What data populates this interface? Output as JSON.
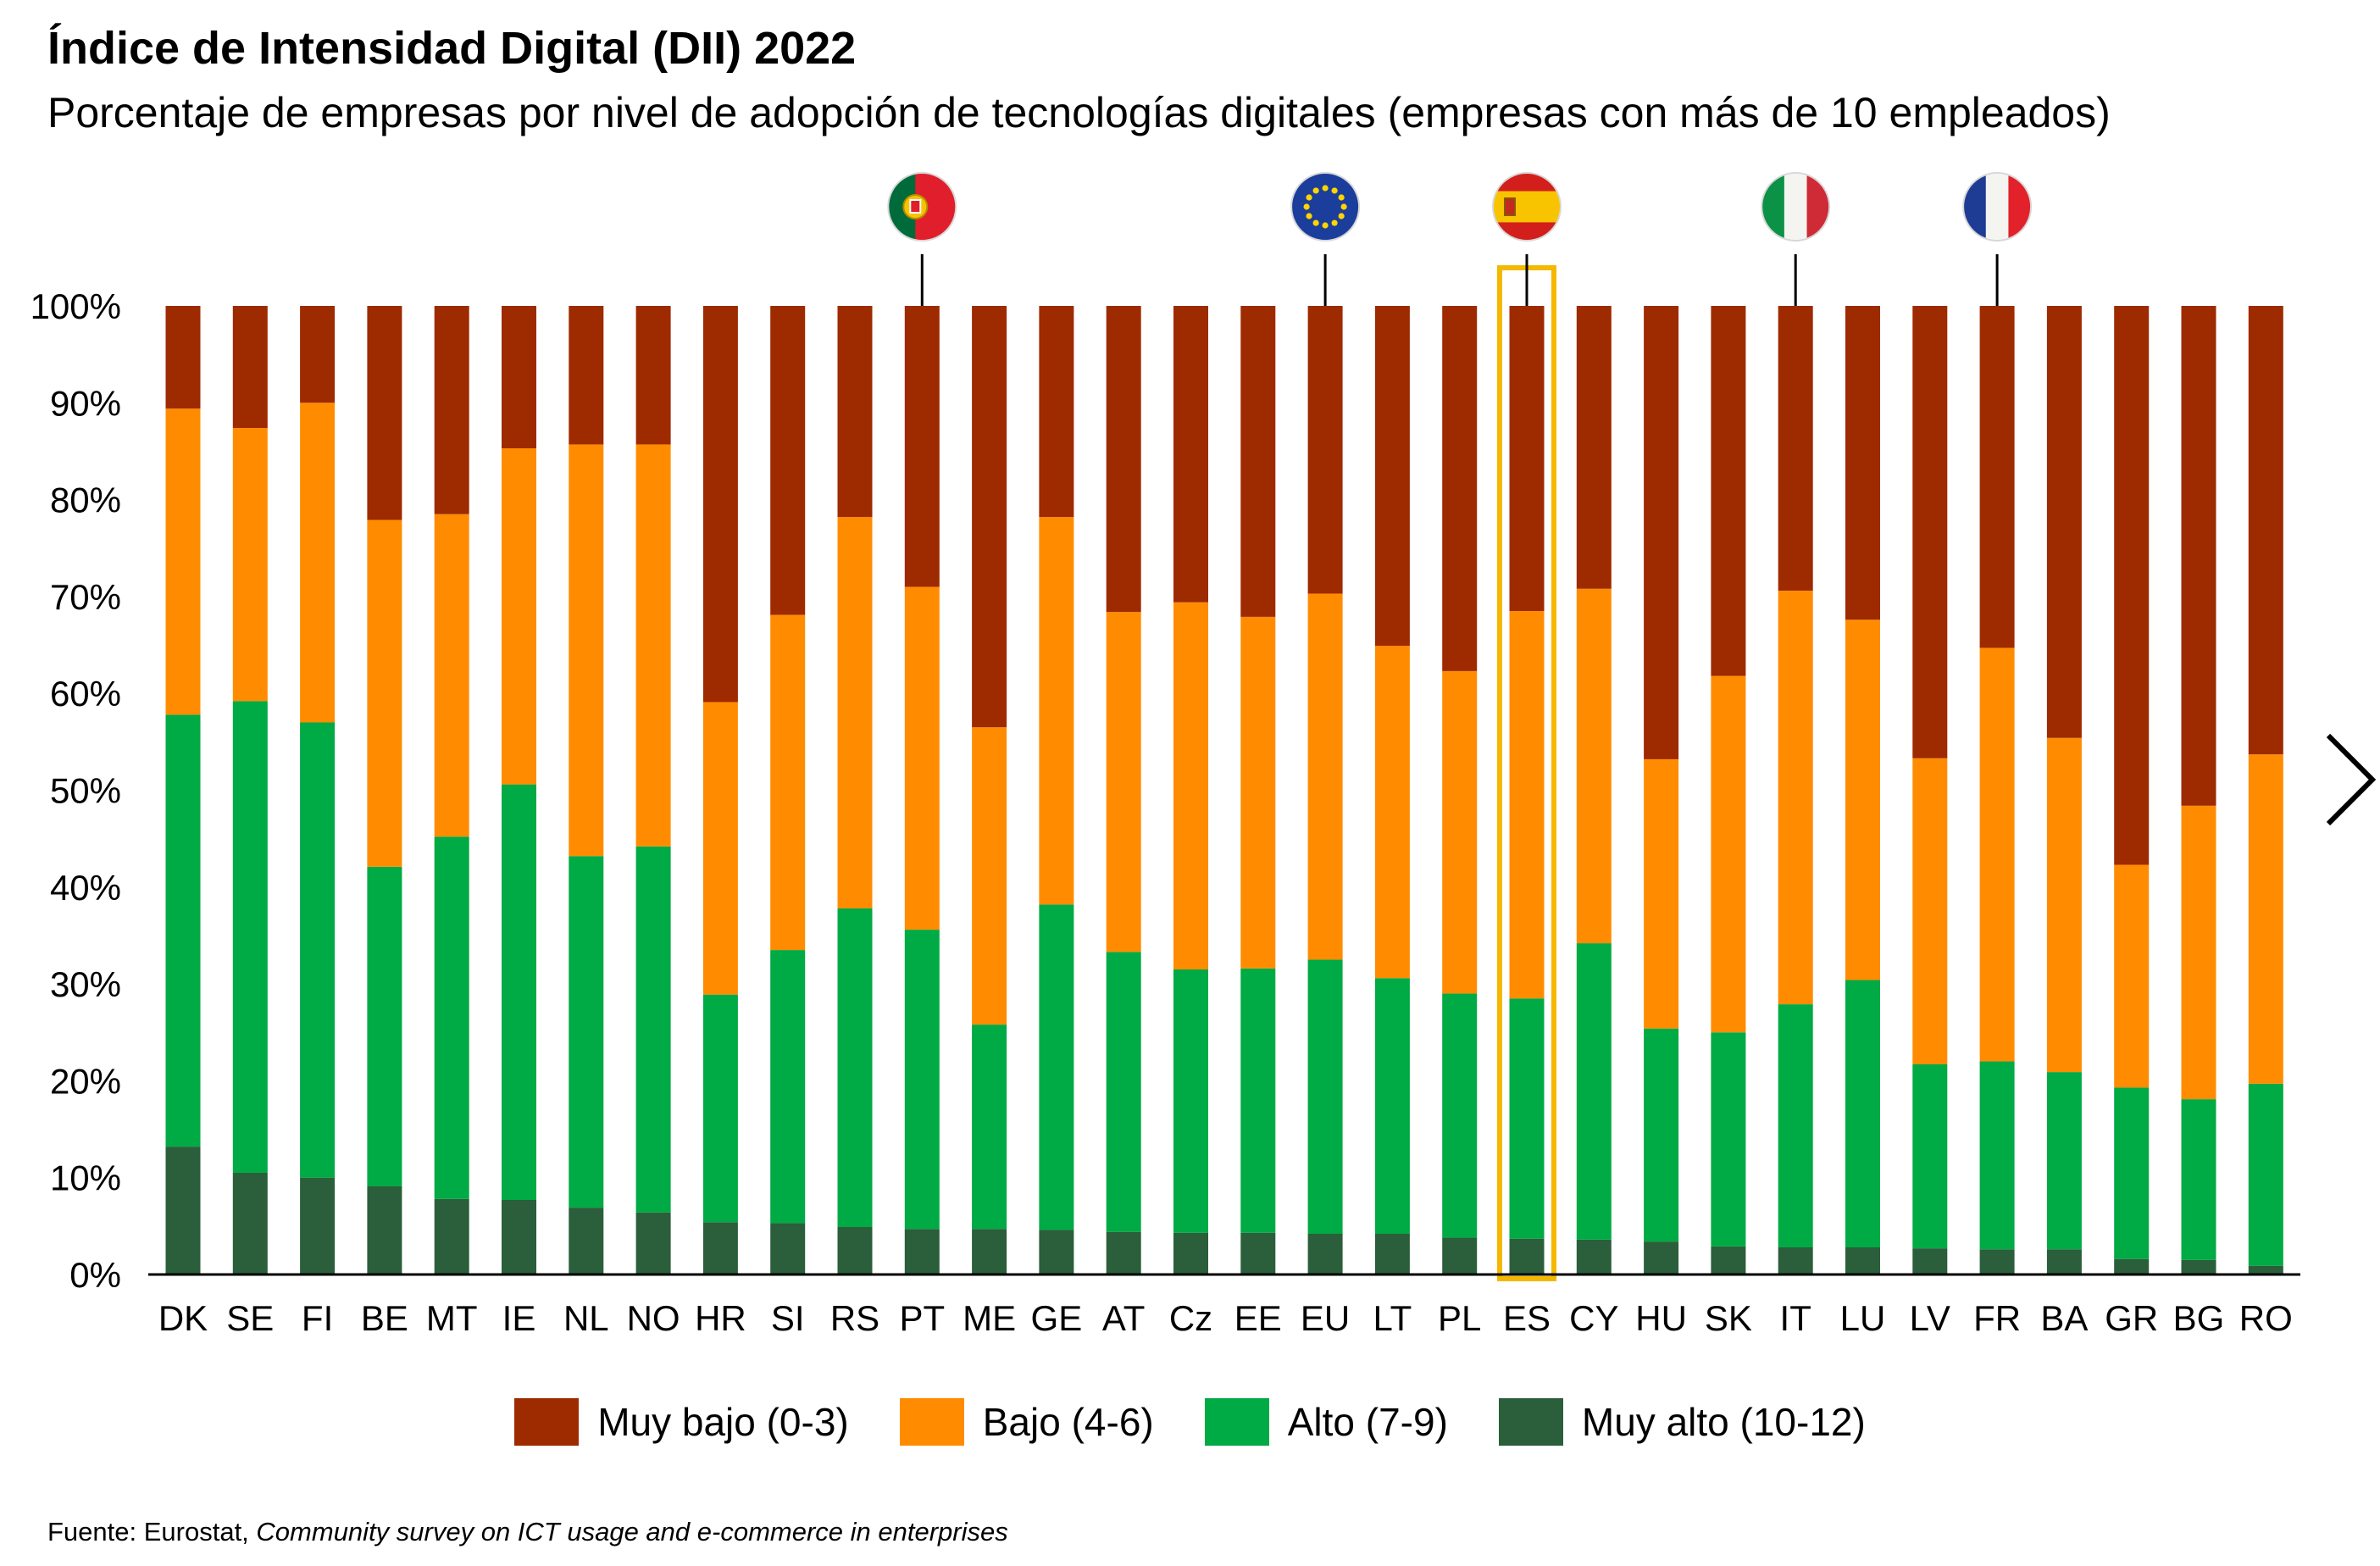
{
  "title": "Índice de Intensidad Digital (DII) 2022",
  "subtitle": "Porcentaje de empresas por nivel de adopción de tecnologías digitales (empresas con más de 10 empleados)",
  "source": {
    "prefix": "Fuente: Eurostat, ",
    "italic": "Community survey on ICT usage and e-commerce in enterprises"
  },
  "navigation": {
    "next_icon": "chevron-right-icon"
  },
  "colors": {
    "muy_bajo": "#9E2A00",
    "bajo": "#FF8C00",
    "alto": "#00AA44",
    "muy_alto": "#2B5E3A",
    "highlight": "#F5B800",
    "axis": "#000000"
  },
  "chart_data": {
    "type": "bar",
    "stacked": true,
    "categories": [
      "DK",
      "SE",
      "FI",
      "BE",
      "MT",
      "IE",
      "NL",
      "NO",
      "HR",
      "SI",
      "RS",
      "PT",
      "ME",
      "GE",
      "AT",
      "Cz",
      "EE",
      "EU",
      "LT",
      "PL",
      "ES",
      "CY",
      "HU",
      "SK",
      "IT",
      "LU",
      "LV",
      "FR",
      "BA",
      "GR",
      "BG",
      "RO"
    ],
    "series": [
      {
        "name": "Muy alto (10-12)",
        "values": [
          13.2,
          10.5,
          10.0,
          9.1,
          7.8,
          7.7,
          6.9,
          6.4,
          5.4,
          5.3,
          4.9,
          4.7,
          4.7,
          4.6,
          4.4,
          4.3,
          4.3,
          4.2,
          4.2,
          3.8,
          3.7,
          3.6,
          3.4,
          2.9,
          2.8,
          2.8,
          2.7,
          2.6,
          2.6,
          1.6,
          1.5,
          0.9
        ]
      },
      {
        "name": "Alto (7-9)",
        "values": [
          44.6,
          48.7,
          47.0,
          33.0,
          37.4,
          42.9,
          36.3,
          37.8,
          23.5,
          28.2,
          32.9,
          30.9,
          21.1,
          33.6,
          28.9,
          27.2,
          27.3,
          28.3,
          26.4,
          25.2,
          24.8,
          30.6,
          22.0,
          22.1,
          25.1,
          27.6,
          19.0,
          19.4,
          18.3,
          17.7,
          16.6,
          18.8
        ]
      },
      {
        "name": "Bajo (4-6)",
        "values": [
          31.6,
          28.2,
          33.0,
          35.8,
          33.3,
          34.7,
          42.5,
          41.5,
          30.2,
          34.6,
          40.4,
          35.4,
          30.7,
          40.0,
          35.1,
          37.9,
          36.3,
          37.8,
          34.3,
          33.3,
          40.0,
          36.6,
          27.8,
          36.8,
          42.7,
          37.2,
          31.6,
          42.7,
          34.5,
          23.0,
          30.3,
          34.0
        ]
      },
      {
        "name": "Muy bajo (0-3)",
        "values": [
          10.6,
          12.6,
          10.0,
          22.1,
          21.5,
          14.7,
          14.3,
          14.3,
          40.9,
          31.9,
          21.8,
          29.0,
          43.5,
          21.8,
          31.6,
          30.6,
          32.1,
          29.7,
          35.1,
          37.7,
          31.5,
          29.2,
          46.8,
          38.2,
          29.4,
          32.4,
          46.7,
          35.3,
          44.6,
          57.7,
          51.6,
          46.3
        ]
      }
    ],
    "yticks": [
      "0%",
      "10%",
      "20%",
      "30%",
      "40%",
      "50%",
      "60%",
      "70%",
      "80%",
      "90%",
      "100%"
    ],
    "ylim": [
      0,
      100
    ],
    "highlight": "ES",
    "flags": [
      {
        "category": "PT",
        "icon": "portugal-flag-icon"
      },
      {
        "category": "EU",
        "icon": "eu-flag-icon"
      },
      {
        "category": "ES",
        "icon": "spain-flag-icon"
      },
      {
        "category": "IT",
        "icon": "italy-flag-icon"
      },
      {
        "category": "FR",
        "icon": "france-flag-icon"
      }
    ],
    "legend_position": "bottom"
  }
}
